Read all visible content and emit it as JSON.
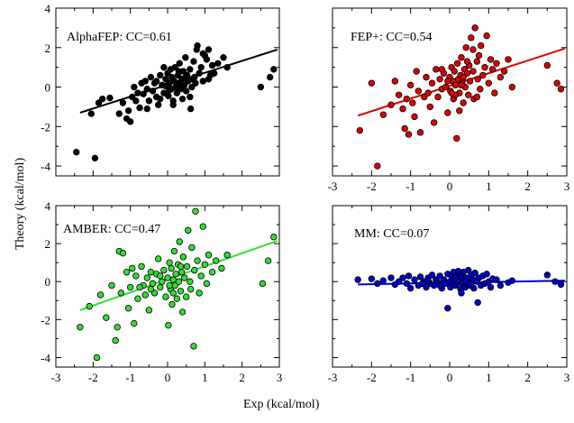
{
  "figure": {
    "xlabel": "Exp (kcal/mol)",
    "ylabel": "Theory (kcal/mol)"
  },
  "chart_data": [
    {
      "type": "scatter",
      "title": "AlphaFEP: CC=0.61",
      "color": "#000000",
      "xlim": [
        -3,
        3
      ],
      "ylim": [
        -4.5,
        4
      ],
      "xticks": [],
      "yticks": [
        -4,
        -2,
        0,
        2,
        4
      ],
      "fit": {
        "x": [
          -2.35,
          2.95
        ],
        "y": [
          -1.3,
          1.9
        ]
      },
      "points": [
        [
          -2.45,
          -3.3
        ],
        [
          -2.05,
          -1.35
        ],
        [
          -1.85,
          -0.8
        ],
        [
          -1.75,
          -0.6
        ],
        [
          -1.55,
          -0.55
        ],
        [
          -1.3,
          -1.35
        ],
        [
          -1.2,
          -0.8
        ],
        [
          -1.1,
          -1.6
        ],
        [
          -1.05,
          -1.2
        ],
        [
          -1.0,
          -1.75
        ],
        [
          -0.95,
          -0.5
        ],
        [
          -0.9,
          0.0
        ],
        [
          -0.85,
          -0.7
        ],
        [
          -0.8,
          -0.3
        ],
        [
          -0.75,
          -1.05
        ],
        [
          -0.65,
          -0.35
        ],
        [
          -0.6,
          0.3
        ],
        [
          -0.55,
          -0.1
        ],
        [
          -0.5,
          -0.7
        ],
        [
          -0.45,
          0.5
        ],
        [
          -0.4,
          -0.2
        ],
        [
          -0.35,
          0.2
        ],
        [
          -0.3,
          -0.5
        ],
        [
          -0.25,
          -0.9
        ],
        [
          -0.2,
          0.6
        ],
        [
          -0.15,
          0.1
        ],
        [
          -0.1,
          -0.3
        ],
        [
          -0.05,
          0.4
        ],
        [
          0.0,
          0.7
        ],
        [
          0.02,
          -0.45
        ],
        [
          0.05,
          0.2
        ],
        [
          0.08,
          0.9
        ],
        [
          0.1,
          -0.1
        ],
        [
          0.12,
          0.5
        ],
        [
          0.15,
          -0.7
        ],
        [
          0.18,
          0.3
        ],
        [
          0.2,
          1.0
        ],
        [
          0.22,
          0.0
        ],
        [
          0.25,
          -0.3
        ],
        [
          0.28,
          0.6
        ],
        [
          0.3,
          0.2
        ],
        [
          0.32,
          1.2
        ],
        [
          0.35,
          -0.1
        ],
        [
          0.38,
          0.4
        ],
        [
          0.4,
          -0.6
        ],
        [
          0.42,
          0.8
        ],
        [
          0.45,
          0.1
        ],
        [
          0.48,
          1.5
        ],
        [
          0.5,
          -0.2
        ],
        [
          0.52,
          0.6
        ],
        [
          0.55,
          0.3
        ],
        [
          0.6,
          0.9
        ],
        [
          0.62,
          -1.1
        ],
        [
          0.65,
          0.0
        ],
        [
          0.7,
          1.3
        ],
        [
          0.72,
          0.5
        ],
        [
          0.75,
          0.2
        ],
        [
          0.78,
          1.9
        ],
        [
          0.8,
          2.1
        ],
        [
          0.85,
          0.7
        ],
        [
          0.9,
          1.0
        ],
        [
          0.95,
          0.3
        ],
        [
          1.0,
          1.6
        ],
        [
          1.05,
          1.4
        ],
        [
          1.1,
          1.9
        ],
        [
          1.15,
          0.6
        ],
        [
          1.2,
          1.1
        ],
        [
          1.25,
          0.7
        ],
        [
          1.35,
          1.2
        ],
        [
          1.5,
          1.5
        ],
        [
          1.6,
          1.0
        ],
        [
          -0.7,
          0.2
        ],
        [
          -0.2,
          -0.6
        ],
        [
          0.15,
          -0.9
        ],
        [
          0.35,
          0.0
        ],
        [
          0.6,
          -0.5
        ],
        [
          -0.05,
          0.05
        ],
        [
          0.45,
          0.45
        ],
        [
          2.5,
          0.0
        ],
        [
          2.75,
          0.5
        ],
        [
          2.85,
          0.9
        ],
        [
          -1.95,
          -3.6
        ],
        [
          -0.3,
          0.3
        ],
        [
          0.05,
          -0.15
        ],
        [
          0.3,
          0.8
        ],
        [
          -0.1,
          1.0
        ],
        [
          0.65,
          0.4
        ],
        [
          0.95,
          1.7
        ],
        [
          -0.55,
          -1.1
        ],
        [
          1.1,
          0.4
        ]
      ]
    },
    {
      "type": "scatter",
      "title": "FEP+: CC=0.54",
      "color": "#dd0000",
      "xlim": [
        -3,
        3
      ],
      "ylim": [
        -4.5,
        4
      ],
      "xticks": [
        -3,
        -2,
        -1,
        0,
        1,
        2,
        3
      ],
      "yticks": [],
      "fit": {
        "x": [
          -2.35,
          2.95
        ],
        "y": [
          -1.45,
          1.95
        ]
      },
      "points": [
        [
          -2.3,
          -2.2
        ],
        [
          -2.0,
          0.2
        ],
        [
          -1.85,
          -4.0
        ],
        [
          -1.7,
          -1.4
        ],
        [
          -1.5,
          -0.9
        ],
        [
          -1.4,
          0.3
        ],
        [
          -1.3,
          -0.4
        ],
        [
          -1.2,
          -1.1
        ],
        [
          -1.1,
          -0.6
        ],
        [
          -1.05,
          -2.4
        ],
        [
          -1.0,
          0.1
        ],
        [
          -0.95,
          -0.8
        ],
        [
          -0.9,
          -1.5
        ],
        [
          -0.85,
          0.8
        ],
        [
          -0.8,
          -0.2
        ],
        [
          -0.75,
          -2.3
        ],
        [
          -0.6,
          0.5
        ],
        [
          -0.55,
          -0.3
        ],
        [
          -0.5,
          -1.0
        ],
        [
          -0.45,
          0.2
        ],
        [
          -0.4,
          -1.8
        ],
        [
          -0.35,
          0.9
        ],
        [
          -0.3,
          -0.5
        ],
        [
          -0.25,
          0.4
        ],
        [
          -0.2,
          -0.1
        ],
        [
          -0.15,
          0.7
        ],
        [
          -0.1,
          0.0
        ],
        [
          -0.05,
          -1.3
        ],
        [
          0.0,
          0.5
        ],
        [
          0.02,
          -0.2
        ],
        [
          0.05,
          1.0
        ],
        [
          0.08,
          0.3
        ],
        [
          0.1,
          -0.6
        ],
        [
          0.12,
          0.8
        ],
        [
          0.15,
          0.1
        ],
        [
          0.18,
          -2.6
        ],
        [
          0.2,
          1.2
        ],
        [
          0.22,
          0.4
        ],
        [
          0.25,
          -0.3
        ],
        [
          0.28,
          0.6
        ],
        [
          0.3,
          1.5
        ],
        [
          0.32,
          0.2
        ],
        [
          0.35,
          -0.8
        ],
        [
          0.38,
          0.9
        ],
        [
          0.4,
          0.0
        ],
        [
          0.42,
          2.0
        ],
        [
          0.45,
          0.7
        ],
        [
          0.48,
          -0.4
        ],
        [
          0.5,
          1.1
        ],
        [
          0.52,
          0.3
        ],
        [
          0.55,
          2.5
        ],
        [
          0.6,
          0.8
        ],
        [
          0.62,
          -0.6
        ],
        [
          0.65,
          3.0
        ],
        [
          0.7,
          1.3
        ],
        [
          0.72,
          0.4
        ],
        [
          0.75,
          1.6
        ],
        [
          0.78,
          -0.1
        ],
        [
          0.8,
          2.1
        ],
        [
          0.85,
          0.6
        ],
        [
          0.9,
          1.0
        ],
        [
          0.95,
          2.6
        ],
        [
          1.0,
          0.2
        ],
        [
          1.05,
          1.4
        ],
        [
          1.1,
          0.9
        ],
        [
          1.15,
          -0.3
        ],
        [
          1.2,
          1.2
        ],
        [
          1.3,
          0.5
        ],
        [
          1.4,
          0.8
        ],
        [
          1.5,
          1.4
        ],
        [
          1.6,
          0.0
        ],
        [
          2.5,
          1.1
        ],
        [
          2.75,
          0.2
        ],
        [
          2.85,
          -0.1
        ],
        [
          -0.65,
          -0.5
        ],
        [
          -0.2,
          0.9
        ],
        [
          0.15,
          -0.4
        ],
        [
          0.35,
          0.5
        ],
        [
          0.6,
          1.9
        ],
        [
          -0.05,
          0.3
        ],
        [
          0.45,
          1.3
        ],
        [
          0.25,
          -1.2
        ],
        [
          0.7,
          -0.5
        ],
        [
          -1.15,
          -2.1
        ],
        [
          0.05,
          -0.3
        ],
        [
          0.3,
          0.1
        ]
      ]
    },
    {
      "type": "scatter",
      "title": "AMBER: CC=0.47",
      "color": "#33dd33",
      "xlim": [
        -3,
        3
      ],
      "ylim": [
        -4.5,
        4
      ],
      "xticks": [
        -3,
        -2,
        -1,
        0,
        1,
        2,
        3
      ],
      "yticks": [
        -4,
        -2,
        0,
        2,
        4
      ],
      "fit": {
        "x": [
          -2.35,
          2.95
        ],
        "y": [
          -1.5,
          2.15
        ]
      },
      "points": [
        [
          -2.35,
          -2.4
        ],
        [
          -2.1,
          -1.3
        ],
        [
          -1.9,
          -4.0
        ],
        [
          -1.8,
          -0.7
        ],
        [
          -1.65,
          -1.9
        ],
        [
          -1.5,
          -0.2
        ],
        [
          -1.4,
          -3.1
        ],
        [
          -1.35,
          -2.4
        ],
        [
          -1.3,
          1.6
        ],
        [
          -1.25,
          -0.6
        ],
        [
          -1.2,
          1.5
        ],
        [
          -1.1,
          0.5
        ],
        [
          -1.05,
          -1.4
        ],
        [
          -1.0,
          -0.3
        ],
        [
          -0.95,
          0.7
        ],
        [
          -0.9,
          -2.2
        ],
        [
          -0.85,
          0.3
        ],
        [
          -0.8,
          -0.9
        ],
        [
          -0.7,
          0.8
        ],
        [
          -0.65,
          -0.2
        ],
        [
          -0.6,
          -0.7
        ],
        [
          -0.55,
          0.2
        ],
        [
          -0.5,
          -1.5
        ],
        [
          -0.45,
          0.5
        ],
        [
          -0.4,
          -0.1
        ],
        [
          -0.35,
          -0.6
        ],
        [
          -0.3,
          0.4
        ],
        [
          -0.25,
          1.2
        ],
        [
          -0.2,
          -0.3
        ],
        [
          -0.15,
          0.0
        ],
        [
          -0.1,
          0.6
        ],
        [
          -0.05,
          -0.8
        ],
        [
          0.0,
          0.2
        ],
        [
          0.02,
          -2.3
        ],
        [
          0.05,
          1.0
        ],
        [
          0.08,
          -0.4
        ],
        [
          0.1,
          0.7
        ],
        [
          0.12,
          -1.2
        ],
        [
          0.15,
          0.1
        ],
        [
          0.18,
          1.6
        ],
        [
          0.2,
          -0.2
        ],
        [
          0.22,
          0.4
        ],
        [
          0.25,
          -0.9
        ],
        [
          0.28,
          0.9
        ],
        [
          0.3,
          0.0
        ],
        [
          0.32,
          2.1
        ],
        [
          0.35,
          -0.5
        ],
        [
          0.38,
          0.5
        ],
        [
          0.4,
          -1.6
        ],
        [
          0.42,
          1.3
        ],
        [
          0.45,
          0.2
        ],
        [
          0.5,
          -0.8
        ],
        [
          0.52,
          0.8
        ],
        [
          0.55,
          2.7
        ],
        [
          0.6,
          0.0
        ],
        [
          0.62,
          -0.4
        ],
        [
          0.65,
          1.8
        ],
        [
          0.7,
          -3.4
        ],
        [
          0.72,
          0.6
        ],
        [
          0.75,
          3.7
        ],
        [
          0.8,
          1.1
        ],
        [
          0.85,
          -0.6
        ],
        [
          0.9,
          0.3
        ],
        [
          0.95,
          2.9
        ],
        [
          1.0,
          0.9
        ],
        [
          1.05,
          -0.1
        ],
        [
          1.1,
          1.4
        ],
        [
          1.2,
          0.5
        ],
        [
          1.3,
          1.1
        ],
        [
          1.45,
          0.7
        ],
        [
          1.6,
          1.4
        ],
        [
          2.55,
          -0.1
        ],
        [
          2.7,
          1.1
        ],
        [
          2.85,
          2.35
        ],
        [
          -0.75,
          -0.3
        ],
        [
          -0.2,
          0.3
        ],
        [
          0.15,
          -0.6
        ],
        [
          0.35,
          0.8
        ],
        [
          -0.45,
          -0.4
        ],
        [
          0.05,
          -0.2
        ]
      ]
    },
    {
      "type": "scatter",
      "title": "MM: CC=0.07",
      "color": "#0000cc",
      "xlim": [
        -3,
        3
      ],
      "ylim": [
        -4.5,
        4
      ],
      "xticks": [
        -3,
        -2,
        -1,
        0,
        1,
        2,
        3
      ],
      "yticks": [],
      "fit": {
        "x": [
          -2.35,
          2.95
        ],
        "y": [
          -0.15,
          0.05
        ]
      },
      "points": [
        [
          -2.35,
          0.1
        ],
        [
          -2.0,
          0.15
        ],
        [
          -1.85,
          -0.1
        ],
        [
          -1.7,
          0.05
        ],
        [
          -1.5,
          0.2
        ],
        [
          -1.4,
          -0.15
        ],
        [
          -1.3,
          0.0
        ],
        [
          -1.2,
          0.2
        ],
        [
          -1.1,
          -0.1
        ],
        [
          -1.05,
          0.3
        ],
        [
          -1.0,
          -0.35
        ],
        [
          -0.9,
          0.1
        ],
        [
          -0.8,
          -0.2
        ],
        [
          -0.75,
          0.25
        ],
        [
          -0.65,
          0.0
        ],
        [
          -0.6,
          -0.3
        ],
        [
          -0.55,
          0.2
        ],
        [
          -0.5,
          -0.1
        ],
        [
          -0.45,
          0.35
        ],
        [
          -0.4,
          -0.2
        ],
        [
          -0.35,
          0.1
        ],
        [
          -0.3,
          -0.05
        ],
        [
          -0.25,
          0.3
        ],
        [
          -0.2,
          -0.35
        ],
        [
          -0.15,
          0.1
        ],
        [
          -0.1,
          -0.1
        ],
        [
          -0.05,
          0.4
        ],
        [
          0.0,
          0.0
        ],
        [
          0.02,
          -0.3
        ],
        [
          0.05,
          0.3
        ],
        [
          0.08,
          -0.1
        ],
        [
          0.1,
          0.5
        ],
        [
          0.12,
          0.1
        ],
        [
          0.15,
          -0.2
        ],
        [
          0.18,
          0.3
        ],
        [
          0.2,
          -0.05
        ],
        [
          0.22,
          0.55
        ],
        [
          0.25,
          0.0
        ],
        [
          0.28,
          -0.4
        ],
        [
          0.3,
          0.25
        ],
        [
          0.32,
          -0.1
        ],
        [
          0.35,
          0.5
        ],
        [
          0.38,
          0.1
        ],
        [
          0.4,
          -0.3
        ],
        [
          0.42,
          0.2
        ],
        [
          0.45,
          -0.1
        ],
        [
          0.48,
          0.6
        ],
        [
          0.5,
          0.0
        ],
        [
          0.52,
          -0.2
        ],
        [
          0.55,
          0.35
        ],
        [
          0.6,
          0.1
        ],
        [
          0.62,
          -0.35
        ],
        [
          0.65,
          0.45
        ],
        [
          0.7,
          0.0
        ],
        [
          0.72,
          -1.1
        ],
        [
          0.75,
          0.2
        ],
        [
          0.8,
          -0.2
        ],
        [
          0.85,
          0.3
        ],
        [
          0.9,
          -0.1
        ],
        [
          0.95,
          0.4
        ],
        [
          1.0,
          0.0
        ],
        [
          1.05,
          -0.3
        ],
        [
          1.1,
          0.15
        ],
        [
          1.2,
          0.1
        ],
        [
          1.3,
          -0.2
        ],
        [
          1.5,
          -0.05
        ],
        [
          1.6,
          0.05
        ],
        [
          2.5,
          0.35
        ],
        [
          2.7,
          0.0
        ],
        [
          2.85,
          -0.15
        ],
        [
          -0.7,
          -0.1
        ],
        [
          0.15,
          0.2
        ],
        [
          0.4,
          0.0
        ],
        [
          -0.25,
          -0.2
        ],
        [
          0.3,
          -0.6
        ],
        [
          -0.05,
          -1.4
        ],
        [
          0.55,
          -0.1
        ],
        [
          -0.55,
          0.05
        ]
      ]
    }
  ]
}
